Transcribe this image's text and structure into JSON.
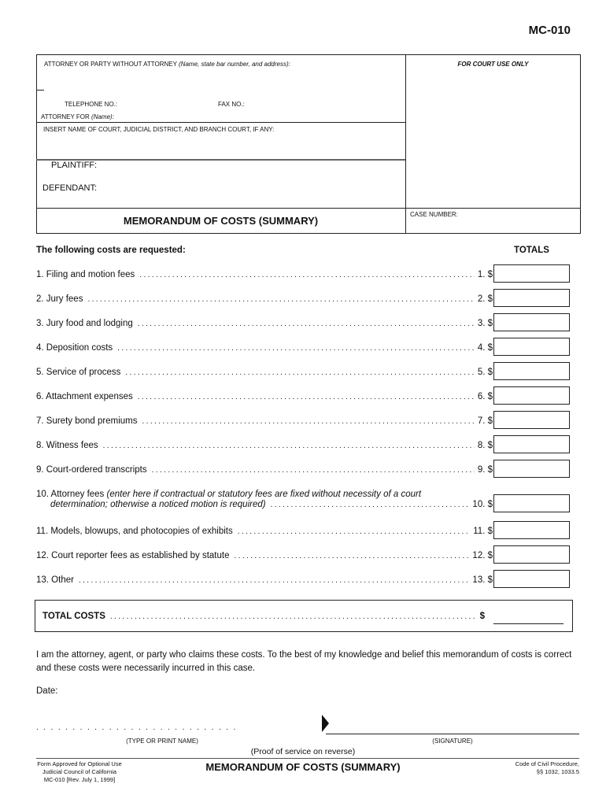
{
  "form_id": "MC-010",
  "header": {
    "attorney_label": "ATTORNEY OR PARTY WITHOUT ATTORNEY",
    "attorney_hint": "(Name, state bar number, and address):",
    "court_use": "FOR COURT USE ONLY",
    "telephone": "TELEPHONE NO.:",
    "fax": "FAX NO.:",
    "attorney_for": "ATTORNEY FOR",
    "attorney_for_hint": "(Name):",
    "court_name": "INSERT NAME OF COURT, JUDICIAL DISTRICT, AND BRANCH COURT, IF ANY:",
    "plaintiff": "PLAINTIFF:",
    "defendant": "DEFENDANT:",
    "title": "MEMORANDUM OF COSTS (SUMMARY)",
    "case_number": "CASE NUMBER:"
  },
  "costs": {
    "intro": "The following costs are requested:",
    "totals": "TOTALS",
    "items": [
      {
        "label": "1.  Filing and motion fees",
        "num": "1. $"
      },
      {
        "label": "2.  Jury fees",
        "num": "2. $"
      },
      {
        "label": "3.  Jury food and lodging",
        "num": "3. $"
      },
      {
        "label": "4.  Deposition costs",
        "num": "4. $"
      },
      {
        "label": "5.  Service of process",
        "num": "5. $"
      },
      {
        "label": "6.  Attachment expenses",
        "num": "6. $"
      },
      {
        "label": "7.  Surety bond premiums",
        "num": "7. $"
      },
      {
        "label": "8.  Witness fees",
        "num": "8. $"
      },
      {
        "label": "9.  Court-ordered transcripts",
        "num": "9. $"
      },
      {
        "label": "10. Attorney fees",
        "num": "10. $"
      },
      {
        "label": "11. Models, blowups, and photocopies of exhibits",
        "num": "11. $"
      },
      {
        "label": "12. Court reporter fees as established by statute",
        "num": "12. $"
      },
      {
        "label": "13. Other",
        "num": "13. $"
      }
    ],
    "attorney_fees_note_1": "(enter here if contractual or statutory fees are fixed without necessity of a court",
    "attorney_fees_note_2": "determination; otherwise a noticed motion is required)",
    "total_label": "TOTAL COSTS",
    "total_dollar": "$"
  },
  "declaration": {
    "text": "I am the attorney, agent, or party who claims these costs. To the best of my knowledge and belief this memorandum of costs is correct and these costs were necessarily incurred in this case.",
    "date": "Date:",
    "type_name": "(TYPE OR PRINT NAME)",
    "signature": "(SIGNATURE)",
    "proof": "(Proof of service on reverse)"
  },
  "footer": {
    "left_1": "Form Approved for Optional Use",
    "left_2": "Judicial Council of California",
    "left_3": "MC-010 [Rev. July 1, 1999]",
    "title": "MEMORANDUM OF COSTS (SUMMARY)",
    "right_1": "Code of Civil Procedure,",
    "right_2": "§§ 1032, 1033.5"
  }
}
